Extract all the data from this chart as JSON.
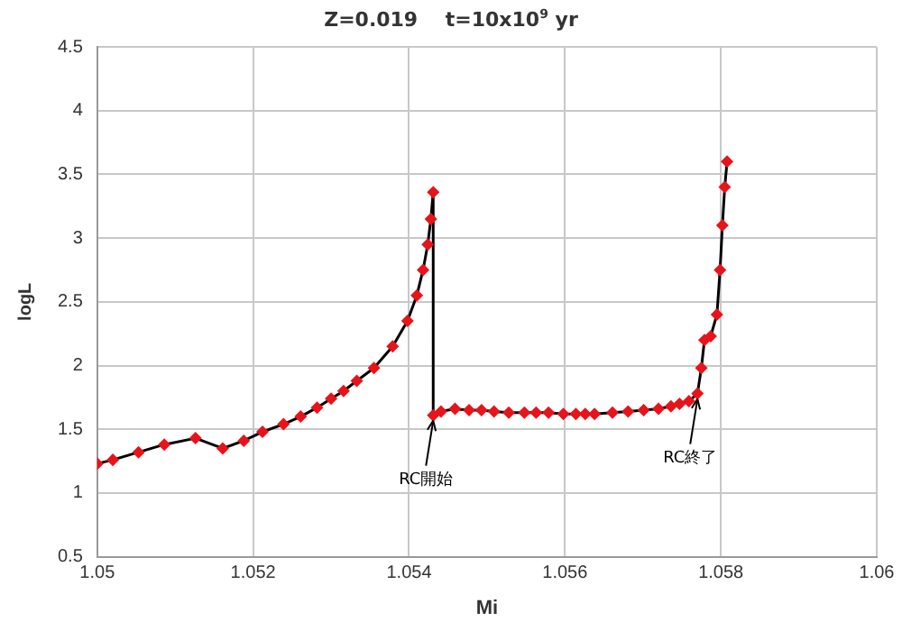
{
  "chart_data": {
    "type": "line",
    "title": "Z=0.019    t=10x10$^{9}$ yr",
    "xlabel": "Mi",
    "ylabel": "logL",
    "series": [
      {
        "color": "#e8141b",
        "x": [
          1.05,
          1.0502,
          1.05053,
          1.05086,
          1.05126,
          1.05161,
          1.05188,
          1.05212,
          1.05239,
          1.05261,
          1.05282,
          1.053,
          1.05316,
          1.05333,
          1.05355,
          1.05379,
          1.05398,
          1.0541,
          1.05418,
          1.05424,
          1.05428,
          1.05431,
          1.05431,
          1.05441,
          1.05459,
          1.05477,
          1.05493,
          1.05509,
          1.05528,
          1.05548,
          1.05563,
          1.05579,
          1.05598,
          1.05614,
          1.05626,
          1.05638,
          1.05661,
          1.05681,
          1.05701,
          1.0572,
          1.05736,
          1.05747,
          1.05759,
          1.0577,
          1.05775,
          1.05779,
          1.05787,
          1.05795,
          1.05799,
          1.05802,
          1.05805,
          1.05808
        ],
        "values": [
          1.23,
          1.26,
          1.32,
          1.38,
          1.43,
          1.35,
          1.41,
          1.48,
          1.54,
          1.6,
          1.67,
          1.74,
          1.8,
          1.88,
          1.98,
          2.15,
          2.35,
          2.55,
          2.75,
          2.95,
          3.15,
          3.36,
          1.61,
          1.64,
          1.66,
          1.65,
          1.65,
          1.64,
          1.63,
          1.63,
          1.63,
          1.63,
          1.62,
          1.62,
          1.62,
          1.62,
          1.63,
          1.64,
          1.65,
          1.66,
          1.68,
          1.7,
          1.72,
          1.78,
          1.98,
          2.2,
          2.23,
          2.4,
          2.75,
          3.1,
          3.4,
          3.6
        ]
      }
    ],
    "xlim": [
      1.05,
      1.06
    ],
    "xticks": [
      1.05,
      1.052,
      1.054,
      1.056,
      1.058,
      1.06
    ],
    "ylim": [
      0.5,
      4.5
    ],
    "yticks": [
      0.5,
      1,
      1.5,
      2,
      2.5,
      3,
      3.5,
      4,
      4.5
    ],
    "grid": true,
    "legend": false,
    "marker": "diamond",
    "line_style": "solid",
    "annotations": [
      {
        "text": "RC開始",
        "x": 1.05431,
        "y": 1.61
      },
      {
        "text": "RC終了",
        "x": 1.0577,
        "y": 1.78
      }
    ]
  }
}
